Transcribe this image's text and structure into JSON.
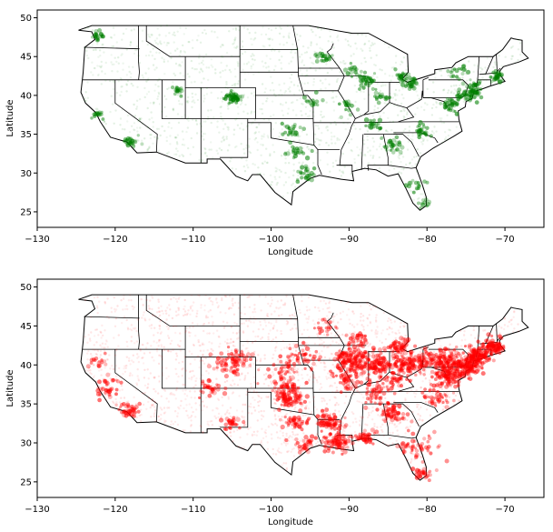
{
  "chart_data": [
    {
      "type": "scatter",
      "xlabel": "Longitude",
      "ylabel": "Latitude",
      "xlim": [
        -130,
        -65
      ],
      "ylim": [
        23,
        51
      ],
      "xticks": [
        -130,
        -120,
        -110,
        -100,
        -90,
        -80,
        -70
      ],
      "yticks": [
        25,
        30,
        35,
        40,
        45,
        50
      ],
      "grid": false,
      "point_color": "#007f00",
      "state_outline_color": "#000000",
      "clusters": [
        {
          "x": -104.9,
          "y": 39.7,
          "count": 60,
          "spread": 0.5
        },
        {
          "x": -87.7,
          "y": 41.9,
          "count": 40,
          "spread": 0.6
        },
        {
          "x": -74.0,
          "y": 40.7,
          "count": 50,
          "spread": 0.7
        },
        {
          "x": -77.0,
          "y": 38.9,
          "count": 40,
          "spread": 0.6
        },
        {
          "x": -75.2,
          "y": 40.0,
          "count": 30,
          "spread": 0.5
        },
        {
          "x": -84.4,
          "y": 33.7,
          "count": 30,
          "spread": 0.6
        },
        {
          "x": -80.8,
          "y": 35.2,
          "count": 25,
          "spread": 0.6
        },
        {
          "x": -86.8,
          "y": 36.2,
          "count": 25,
          "spread": 0.6
        },
        {
          "x": -97.5,
          "y": 35.5,
          "count": 25,
          "spread": 0.7
        },
        {
          "x": -95.4,
          "y": 29.8,
          "count": 25,
          "spread": 0.6
        },
        {
          "x": -96.8,
          "y": 32.8,
          "count": 25,
          "spread": 0.6
        },
        {
          "x": -118.2,
          "y": 34.0,
          "count": 25,
          "spread": 0.5
        },
        {
          "x": -122.3,
          "y": 47.6,
          "count": 20,
          "spread": 0.4
        },
        {
          "x": -122.0,
          "y": 37.6,
          "count": 15,
          "spread": 0.5
        },
        {
          "x": -81.7,
          "y": 41.5,
          "count": 25,
          "spread": 0.5
        },
        {
          "x": -83.0,
          "y": 42.3,
          "count": 25,
          "spread": 0.6
        },
        {
          "x": -90.2,
          "y": 38.6,
          "count": 20,
          "spread": 0.6
        },
        {
          "x": -93.3,
          "y": 44.9,
          "count": 20,
          "spread": 0.5
        },
        {
          "x": -71.1,
          "y": 42.4,
          "count": 30,
          "spread": 0.5
        },
        {
          "x": -76.0,
          "y": 43.0,
          "count": 20,
          "spread": 0.8
        },
        {
          "x": -112.0,
          "y": 40.7,
          "count": 15,
          "spread": 0.4
        },
        {
          "x": -81.4,
          "y": 28.5,
          "count": 15,
          "spread": 0.6
        },
        {
          "x": -80.3,
          "y": 26.0,
          "count": 10,
          "spread": 0.4
        },
        {
          "x": -94.6,
          "y": 39.1,
          "count": 15,
          "spread": 0.6
        },
        {
          "x": -86.2,
          "y": 39.8,
          "count": 15,
          "spread": 0.6
        },
        {
          "x": -89.4,
          "y": 43.1,
          "count": 15,
          "spread": 0.5
        }
      ],
      "background_points": 1400
    },
    {
      "type": "scatter",
      "xlabel": "Longitude",
      "ylabel": "Latitude",
      "xlim": [
        -130,
        -65
      ],
      "ylim": [
        23,
        51
      ],
      "xticks": [
        -130,
        -120,
        -110,
        -100,
        -90,
        -80,
        -70
      ],
      "yticks": [
        25,
        30,
        35,
        40,
        45,
        50
      ],
      "grid": false,
      "point_color": "#ff0000",
      "state_outline_color": "#000000",
      "clusters": [
        {
          "x": -89.5,
          "y": 40.5,
          "count": 160,
          "spread": 1.2
        },
        {
          "x": -86.2,
          "y": 40.0,
          "count": 110,
          "spread": 1.0
        },
        {
          "x": -82.8,
          "y": 40.1,
          "count": 100,
          "spread": 1.0
        },
        {
          "x": -77.5,
          "y": 40.5,
          "count": 110,
          "spread": 1.0
        },
        {
          "x": -75.0,
          "y": 39.8,
          "count": 140,
          "spread": 0.8
        },
        {
          "x": -73.5,
          "y": 41.3,
          "count": 120,
          "spread": 0.8
        },
        {
          "x": -71.5,
          "y": 42.3,
          "count": 80,
          "spread": 0.7
        },
        {
          "x": -77.3,
          "y": 38.5,
          "count": 90,
          "spread": 0.8
        },
        {
          "x": -97.8,
          "y": 36.2,
          "count": 120,
          "spread": 1.0
        },
        {
          "x": -92.6,
          "y": 32.7,
          "count": 70,
          "spread": 0.8
        },
        {
          "x": -91.5,
          "y": 30.2,
          "count": 80,
          "spread": 0.9
        },
        {
          "x": -87.8,
          "y": 30.8,
          "count": 40,
          "spread": 0.6
        },
        {
          "x": -84.3,
          "y": 33.8,
          "count": 60,
          "spread": 0.8
        },
        {
          "x": -81.2,
          "y": 29.5,
          "count": 50,
          "spread": 1.2
        },
        {
          "x": -80.5,
          "y": 26.1,
          "count": 30,
          "spread": 0.5
        },
        {
          "x": -104.8,
          "y": 40.3,
          "count": 80,
          "spread": 1.1
        },
        {
          "x": -107.8,
          "y": 37.2,
          "count": 30,
          "spread": 0.8
        },
        {
          "x": -105.0,
          "y": 32.4,
          "count": 30,
          "spread": 0.6
        },
        {
          "x": -118.2,
          "y": 34.1,
          "count": 40,
          "spread": 0.6
        },
        {
          "x": -121.0,
          "y": 37.0,
          "count": 35,
          "spread": 0.9
        },
        {
          "x": -122.5,
          "y": 40.5,
          "count": 15,
          "spread": 0.8
        },
        {
          "x": -95.8,
          "y": 41.0,
          "count": 40,
          "spread": 1.0
        },
        {
          "x": -98.3,
          "y": 39.2,
          "count": 40,
          "spread": 1.2
        },
        {
          "x": -86.7,
          "y": 36.1,
          "count": 40,
          "spread": 0.9
        },
        {
          "x": -83.5,
          "y": 42.4,
          "count": 50,
          "spread": 0.8
        },
        {
          "x": -80.5,
          "y": 40.5,
          "count": 50,
          "spread": 0.8
        },
        {
          "x": -78.8,
          "y": 35.8,
          "count": 40,
          "spread": 0.9
        },
        {
          "x": -90.2,
          "y": 38.0,
          "count": 40,
          "spread": 0.8
        },
        {
          "x": -93.0,
          "y": 44.8,
          "count": 20,
          "spread": 0.7
        },
        {
          "x": -88.8,
          "y": 43.2,
          "count": 30,
          "spread": 0.7
        },
        {
          "x": -84.5,
          "y": 38.0,
          "count": 40,
          "spread": 0.9
        },
        {
          "x": -97.0,
          "y": 32.8,
          "count": 40,
          "spread": 0.8
        },
        {
          "x": -95.5,
          "y": 29.9,
          "count": 30,
          "spread": 0.6
        }
      ],
      "background_points": 2000
    }
  ]
}
